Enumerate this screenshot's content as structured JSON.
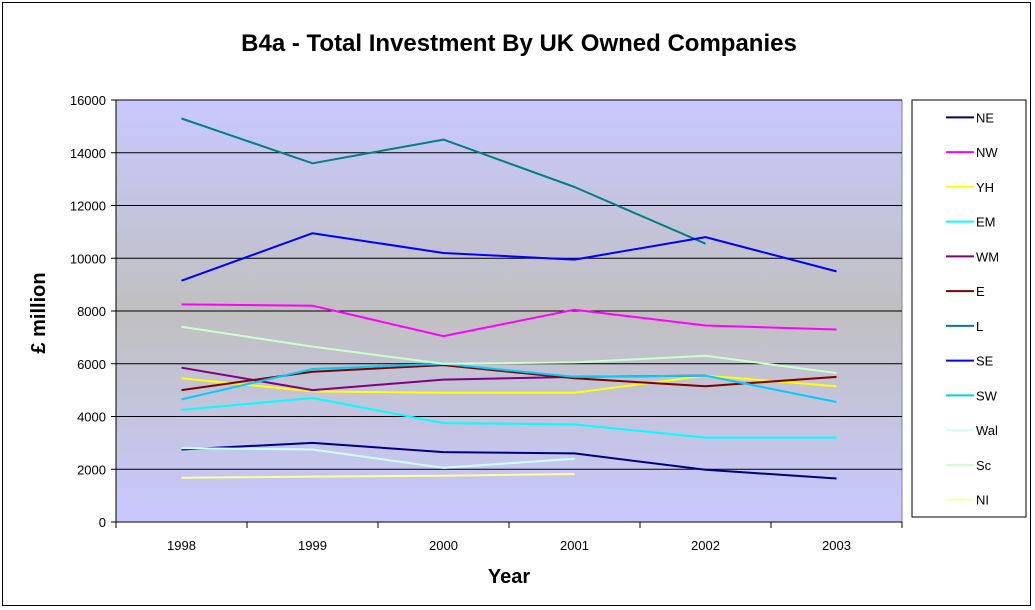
{
  "chart_data": {
    "type": "line",
    "title": "B4a - Total Investment By UK Owned Companies",
    "xlabel": "Year",
    "ylabel": "£ million",
    "x": [
      "1998",
      "1999",
      "2000",
      "2001",
      "2002",
      "2003"
    ],
    "ylim": [
      0,
      16000
    ],
    "yticks": [
      0,
      2000,
      4000,
      6000,
      8000,
      10000,
      12000,
      14000,
      16000
    ],
    "grid": true,
    "legend": "right",
    "series": [
      {
        "name": "NE",
        "color": "#000080",
        "values": [
          2750,
          3000,
          2650,
          2600,
          1980,
          1650
        ]
      },
      {
        "name": "NW",
        "color": "#ff00ff",
        "values": [
          8250,
          8200,
          7050,
          8050,
          7450,
          7300
        ]
      },
      {
        "name": "YH",
        "color": "#ffff00",
        "values": [
          5450,
          4950,
          4900,
          4900,
          5550,
          5150
        ]
      },
      {
        "name": "EM",
        "color": "#00ffff",
        "values": [
          4250,
          4700,
          3750,
          3700,
          3200,
          3200
        ]
      },
      {
        "name": "WM",
        "color": "#800080",
        "values": [
          5850,
          5000,
          5400,
          5500,
          5550,
          null
        ]
      },
      {
        "name": "E",
        "color": "#800000",
        "values": [
          5000,
          5700,
          5950,
          5450,
          5150,
          5500
        ]
      },
      {
        "name": "L",
        "color": "#008080",
        "values": [
          15300,
          13600,
          14500,
          12700,
          10550,
          null
        ]
      },
      {
        "name": "SE",
        "color": "#0000ff",
        "values": [
          9150,
          10950,
          10200,
          9950,
          10800,
          9500
        ]
      },
      {
        "name": "SW",
        "color": "#00ccff",
        "values": [
          4650,
          5800,
          6000,
          5500,
          5550,
          4550
        ]
      },
      {
        "name": "Wal",
        "color": "#ccffff",
        "values": [
          2800,
          2750,
          2050,
          2400,
          null,
          null
        ]
      },
      {
        "name": "Sc",
        "color": "#ccffcc",
        "values": [
          7400,
          6650,
          6000,
          6050,
          6300,
          5650
        ]
      },
      {
        "name": "NI",
        "color": "#ffff99",
        "values": [
          1680,
          1720,
          1750,
          1820,
          null,
          null
        ]
      }
    ]
  }
}
